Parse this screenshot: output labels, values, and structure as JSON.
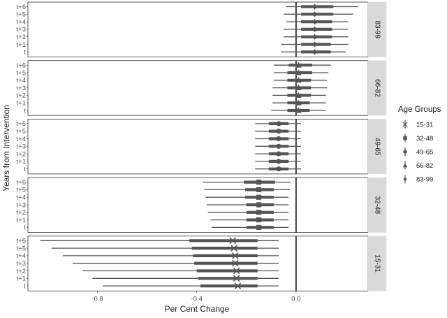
{
  "chart_data": {
    "type": "forest-plot",
    "xlabel": "Per Cent Change",
    "ylabel": "Years from Intervention",
    "xlim": [
      -1.08,
      0.29
    ],
    "x_ticks": [
      -0.8,
      -0.4,
      0.0
    ],
    "x_tick_labels": [
      "-0.8",
      "-0.4",
      "0.0"
    ],
    "reference_line": 0.0,
    "rows": [
      "t+6",
      "t+5",
      "t+4",
      "t+3",
      "t+2",
      "t+1",
      "t"
    ],
    "line_color": "#555555",
    "panel_border_color": "#333333",
    "strip_fill": "#d9d9d9",
    "legend": {
      "title": "Age Groups",
      "position": "right",
      "items": [
        {
          "label": "15-31",
          "shape": "x"
        },
        {
          "label": "32-48",
          "shape": "square"
        },
        {
          "label": "49-65",
          "shape": "circle"
        },
        {
          "label": "66-82",
          "shape": "triangle"
        },
        {
          "label": "83-99",
          "shape": "diamond"
        }
      ]
    },
    "panels": [
      {
        "group": "83-99",
        "shape": "diamond",
        "points": [
          {
            "row": "t+6",
            "est": 0.075,
            "lo_in": 0.02,
            "hi_in": 0.15,
            "lo": -0.04,
            "hi": 0.25
          },
          {
            "row": "t+5",
            "est": 0.075,
            "lo_in": 0.02,
            "hi_in": 0.15,
            "lo": -0.05,
            "hi": 0.23
          },
          {
            "row": "t+4",
            "est": 0.075,
            "lo_in": 0.02,
            "hi_in": 0.145,
            "lo": -0.04,
            "hi": 0.21
          },
          {
            "row": "t+3",
            "est": 0.075,
            "lo_in": 0.02,
            "hi_in": 0.145,
            "lo": -0.05,
            "hi": 0.21
          },
          {
            "row": "t+2",
            "est": 0.075,
            "lo_in": 0.02,
            "hi_in": 0.145,
            "lo": -0.05,
            "hi": 0.21
          },
          {
            "row": "t+1",
            "est": 0.075,
            "lo_in": 0.02,
            "hi_in": 0.14,
            "lo": -0.06,
            "hi": 0.21
          },
          {
            "row": "t",
            "est": 0.075,
            "lo_in": 0.02,
            "hi_in": 0.14,
            "lo": -0.06,
            "hi": 0.2
          }
        ]
      },
      {
        "group": "66-82",
        "shape": "triangle",
        "points": [
          {
            "row": "t+6",
            "est": 0.01,
            "lo_in": -0.03,
            "hi_in": 0.065,
            "lo": -0.09,
            "hi": 0.14
          },
          {
            "row": "t+5",
            "est": 0.01,
            "lo_in": -0.035,
            "hi_in": 0.065,
            "lo": -0.09,
            "hi": 0.13
          },
          {
            "row": "t+4",
            "est": 0.01,
            "lo_in": -0.035,
            "hi_in": 0.06,
            "lo": -0.09,
            "hi": 0.125
          },
          {
            "row": "t+3",
            "est": 0.01,
            "lo_in": -0.035,
            "hi_in": 0.06,
            "lo": -0.095,
            "hi": 0.125
          },
          {
            "row": "t+2",
            "est": 0.01,
            "lo_in": -0.035,
            "hi_in": 0.06,
            "lo": -0.095,
            "hi": 0.12
          },
          {
            "row": "t+1",
            "est": 0.01,
            "lo_in": -0.035,
            "hi_in": 0.055,
            "lo": -0.095,
            "hi": 0.12
          },
          {
            "row": "t",
            "est": 0.01,
            "lo_in": -0.035,
            "hi_in": 0.055,
            "lo": -0.1,
            "hi": 0.12
          }
        ]
      },
      {
        "group": "49-65",
        "shape": "circle",
        "points": [
          {
            "row": "t+6",
            "est": -0.07,
            "lo_in": -0.11,
            "hi_in": -0.03,
            "lo": -0.165,
            "hi": 0.02
          },
          {
            "row": "t+5",
            "est": -0.07,
            "lo_in": -0.11,
            "hi_in": -0.03,
            "lo": -0.165,
            "hi": 0.02
          },
          {
            "row": "t+4",
            "est": -0.07,
            "lo_in": -0.11,
            "hi_in": -0.03,
            "lo": -0.165,
            "hi": 0.02
          },
          {
            "row": "t+3",
            "est": -0.07,
            "lo_in": -0.11,
            "hi_in": -0.03,
            "lo": -0.165,
            "hi": 0.02
          },
          {
            "row": "t+2",
            "est": -0.07,
            "lo_in": -0.11,
            "hi_in": -0.03,
            "lo": -0.165,
            "hi": 0.02
          },
          {
            "row": "t+1",
            "est": -0.07,
            "lo_in": -0.11,
            "hi_in": -0.03,
            "lo": -0.165,
            "hi": 0.02
          },
          {
            "row": "t",
            "est": -0.07,
            "lo_in": -0.11,
            "hi_in": -0.03,
            "lo": -0.165,
            "hi": 0.02
          }
        ]
      },
      {
        "group": "32-48",
        "shape": "square",
        "points": [
          {
            "row": "t+6",
            "est": -0.15,
            "lo_in": -0.21,
            "hi_in": -0.085,
            "lo": -0.375,
            "hi": -0.02
          },
          {
            "row": "t+5",
            "est": -0.15,
            "lo_in": -0.205,
            "hi_in": -0.09,
            "lo": -0.37,
            "hi": -0.025
          },
          {
            "row": "t+4",
            "est": -0.15,
            "lo_in": -0.205,
            "hi_in": -0.09,
            "lo": -0.365,
            "hi": -0.03
          },
          {
            "row": "t+3",
            "est": -0.15,
            "lo_in": -0.2,
            "hi_in": -0.09,
            "lo": -0.36,
            "hi": -0.03
          },
          {
            "row": "t+2",
            "est": -0.15,
            "lo_in": -0.2,
            "hi_in": -0.09,
            "lo": -0.355,
            "hi": -0.03
          },
          {
            "row": "t+1",
            "est": -0.15,
            "lo_in": -0.2,
            "hi_in": -0.09,
            "lo": -0.345,
            "hi": -0.03
          },
          {
            "row": "t",
            "est": -0.15,
            "lo_in": -0.2,
            "hi_in": -0.09,
            "lo": -0.34,
            "hi": -0.03
          }
        ]
      },
      {
        "group": "15-31",
        "shape": "x",
        "points": [
          {
            "row": "t+6",
            "est": -0.255,
            "lo_in": -0.43,
            "hi_in": -0.155,
            "lo": -1.03,
            "hi": -0.07
          },
          {
            "row": "t+5",
            "est": -0.25,
            "lo_in": -0.42,
            "hi_in": -0.155,
            "lo": -0.985,
            "hi": -0.07
          },
          {
            "row": "t+4",
            "est": -0.245,
            "lo_in": -0.415,
            "hi_in": -0.155,
            "lo": -0.94,
            "hi": -0.07
          },
          {
            "row": "t+3",
            "est": -0.245,
            "lo_in": -0.41,
            "hi_in": -0.155,
            "lo": -0.9,
            "hi": -0.07
          },
          {
            "row": "t+2",
            "est": -0.24,
            "lo_in": -0.4,
            "hi_in": -0.155,
            "lo": -0.86,
            "hi": -0.07
          },
          {
            "row": "t+1",
            "est": -0.24,
            "lo_in": -0.395,
            "hi_in": -0.155,
            "lo": -0.82,
            "hi": -0.07
          },
          {
            "row": "t",
            "est": -0.235,
            "lo_in": -0.385,
            "hi_in": -0.155,
            "lo": -0.78,
            "hi": -0.07
          }
        ]
      }
    ]
  }
}
